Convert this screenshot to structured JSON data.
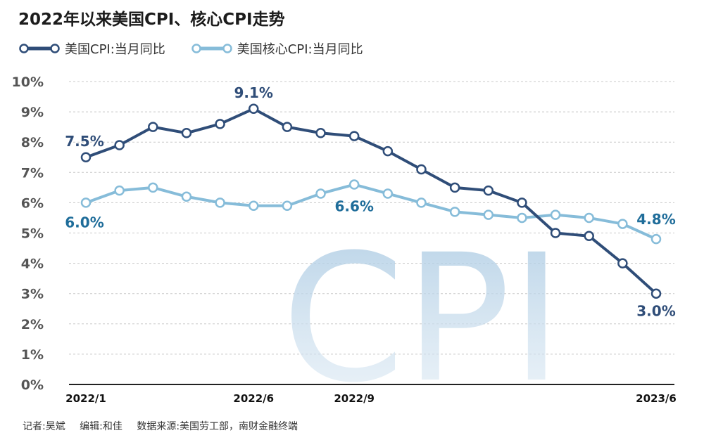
{
  "title": "2022年以来美国CPI、核心CPI走势",
  "legend": [
    {
      "label": "美国CPI:当月同比",
      "color": "#2f4d78"
    },
    {
      "label": "美国核心CPI:当月同比",
      "color": "#86bcd9"
    }
  ],
  "watermark": "CPI",
  "footer": {
    "reporter": "记者:吴斌",
    "editor": "编辑:和佳",
    "source": "数据来源:美国劳工部，南财金融终端"
  },
  "chart_data": {
    "type": "line",
    "ylim": [
      0,
      10
    ],
    "yticks": [
      "0%",
      "1%",
      "2%",
      "3%",
      "4%",
      "5%",
      "6%",
      "7%",
      "8%",
      "9%",
      "10%"
    ],
    "grid": true,
    "x_tick_labels": [
      {
        "index": 0,
        "label": "2022/1"
      },
      {
        "index": 5,
        "label": "2022/6"
      },
      {
        "index": 8,
        "label": "2022/9"
      },
      {
        "index": 17,
        "label": "2023/6"
      }
    ],
    "series": [
      {
        "name": "美国CPI:当月同比",
        "color": "#2f4d78",
        "values": [
          7.5,
          7.9,
          8.5,
          8.3,
          8.6,
          9.1,
          8.5,
          8.3,
          8.2,
          7.7,
          7.1,
          6.5,
          6.4,
          6.0,
          5.0,
          4.9,
          4.0,
          3.0
        ],
        "labels": [
          {
            "index": 0,
            "text": "7.5%"
          },
          {
            "index": 5,
            "text": "9.1%"
          },
          {
            "index": 17,
            "text": "3.0%"
          }
        ]
      },
      {
        "name": "美国核心CPI:当月同比",
        "color": "#86bcd9",
        "values": [
          6.0,
          6.4,
          6.5,
          6.2,
          6.0,
          5.9,
          5.9,
          6.3,
          6.6,
          6.3,
          6.0,
          5.7,
          5.6,
          5.5,
          5.6,
          5.5,
          5.3,
          4.8
        ],
        "labels": [
          {
            "index": 0,
            "text": "6.0%"
          },
          {
            "index": 8,
            "text": "6.6%"
          },
          {
            "index": 17,
            "text": "4.8%"
          }
        ]
      }
    ]
  }
}
